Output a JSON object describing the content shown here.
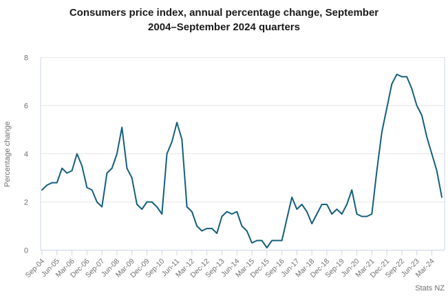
{
  "page": {
    "title_line1": "Consumers price index, annual percentage change, September",
    "title_line2": "2004–September 2024 quarters",
    "source": "Stats NZ"
  },
  "chart_data": {
    "type": "line",
    "title": "Consumers price index, annual percentage change, September 2004–September 2024 quarters",
    "xlabel": "",
    "ylabel": "Percentage change",
    "source": "Stats NZ",
    "ylim": [
      0,
      8
    ],
    "yticks": [
      0,
      2,
      4,
      6,
      8
    ],
    "grid": true,
    "legend_position": "none",
    "x_tick_step": 3,
    "categories": [
      "Sep-04",
      "Dec-04",
      "Mar-05",
      "Jun-05",
      "Sep-05",
      "Dec-05",
      "Mar-06",
      "Jun-06",
      "Sep-06",
      "Dec-06",
      "Mar-07",
      "Jun-07",
      "Sep-07",
      "Dec-07",
      "Mar-08",
      "Jun-08",
      "Sep-08",
      "Dec-08",
      "Mar-09",
      "Jun-09",
      "Sep-09",
      "Dec-09",
      "Mar-10",
      "Jun-10",
      "Sep-10",
      "Dec-10",
      "Mar-11",
      "Jun-11",
      "Sep-11",
      "Dec-11",
      "Mar-12",
      "Jun-12",
      "Sep-12",
      "Dec-12",
      "Mar-13",
      "Jun-13",
      "Sep-13",
      "Dec-13",
      "Mar-14",
      "Jun-14",
      "Sep-14",
      "Dec-14",
      "Mar-15",
      "Jun-15",
      "Sep-15",
      "Dec-15",
      "Mar-16",
      "Jun-16",
      "Sep-16",
      "Dec-16",
      "Mar-17",
      "Jun-17",
      "Sep-17",
      "Dec-17",
      "Mar-18",
      "Jun-18",
      "Sep-18",
      "Dec-18",
      "Mar-19",
      "Jun-19",
      "Sep-19",
      "Dec-19",
      "Mar-20",
      "Jun-20",
      "Sep-20",
      "Dec-20",
      "Mar-21",
      "Jun-21",
      "Sep-21",
      "Dec-21",
      "Mar-22",
      "Jun-22",
      "Sep-22",
      "Dec-22",
      "Mar-23",
      "Jun-23",
      "Sep-23",
      "Dec-23",
      "Mar-24",
      "Jun-24",
      "Sep-24"
    ],
    "series": [
      {
        "name": "Consumers price index annual percentage change",
        "values": [
          2.5,
          2.7,
          2.8,
          2.8,
          3.4,
          3.2,
          3.3,
          4.0,
          3.5,
          2.6,
          2.5,
          2.0,
          1.8,
          3.2,
          3.4,
          4.0,
          5.1,
          3.4,
          3.0,
          1.9,
          1.7,
          2.0,
          2.0,
          1.8,
          1.5,
          4.0,
          4.5,
          5.3,
          4.6,
          1.8,
          1.6,
          1.0,
          0.8,
          0.9,
          0.9,
          0.7,
          1.4,
          1.6,
          1.5,
          1.6,
          1.0,
          0.8,
          0.3,
          0.4,
          0.4,
          0.1,
          0.4,
          0.4,
          0.4,
          1.3,
          2.2,
          1.7,
          1.9,
          1.6,
          1.1,
          1.5,
          1.9,
          1.9,
          1.5,
          1.7,
          1.5,
          1.9,
          2.5,
          1.5,
          1.4,
          1.4,
          1.5,
          3.3,
          4.9,
          5.9,
          6.9,
          7.3,
          7.2,
          7.2,
          6.7,
          6.0,
          5.6,
          4.7,
          4.0,
          3.3,
          2.2
        ]
      }
    ],
    "colors": {
      "line": "#135e7a",
      "grid": "#e6e6e6",
      "axis": "#ccd4ec",
      "tick_label": "#6f6f6f",
      "title": "#1a1a1a",
      "source": "#6f6f6f"
    }
  }
}
